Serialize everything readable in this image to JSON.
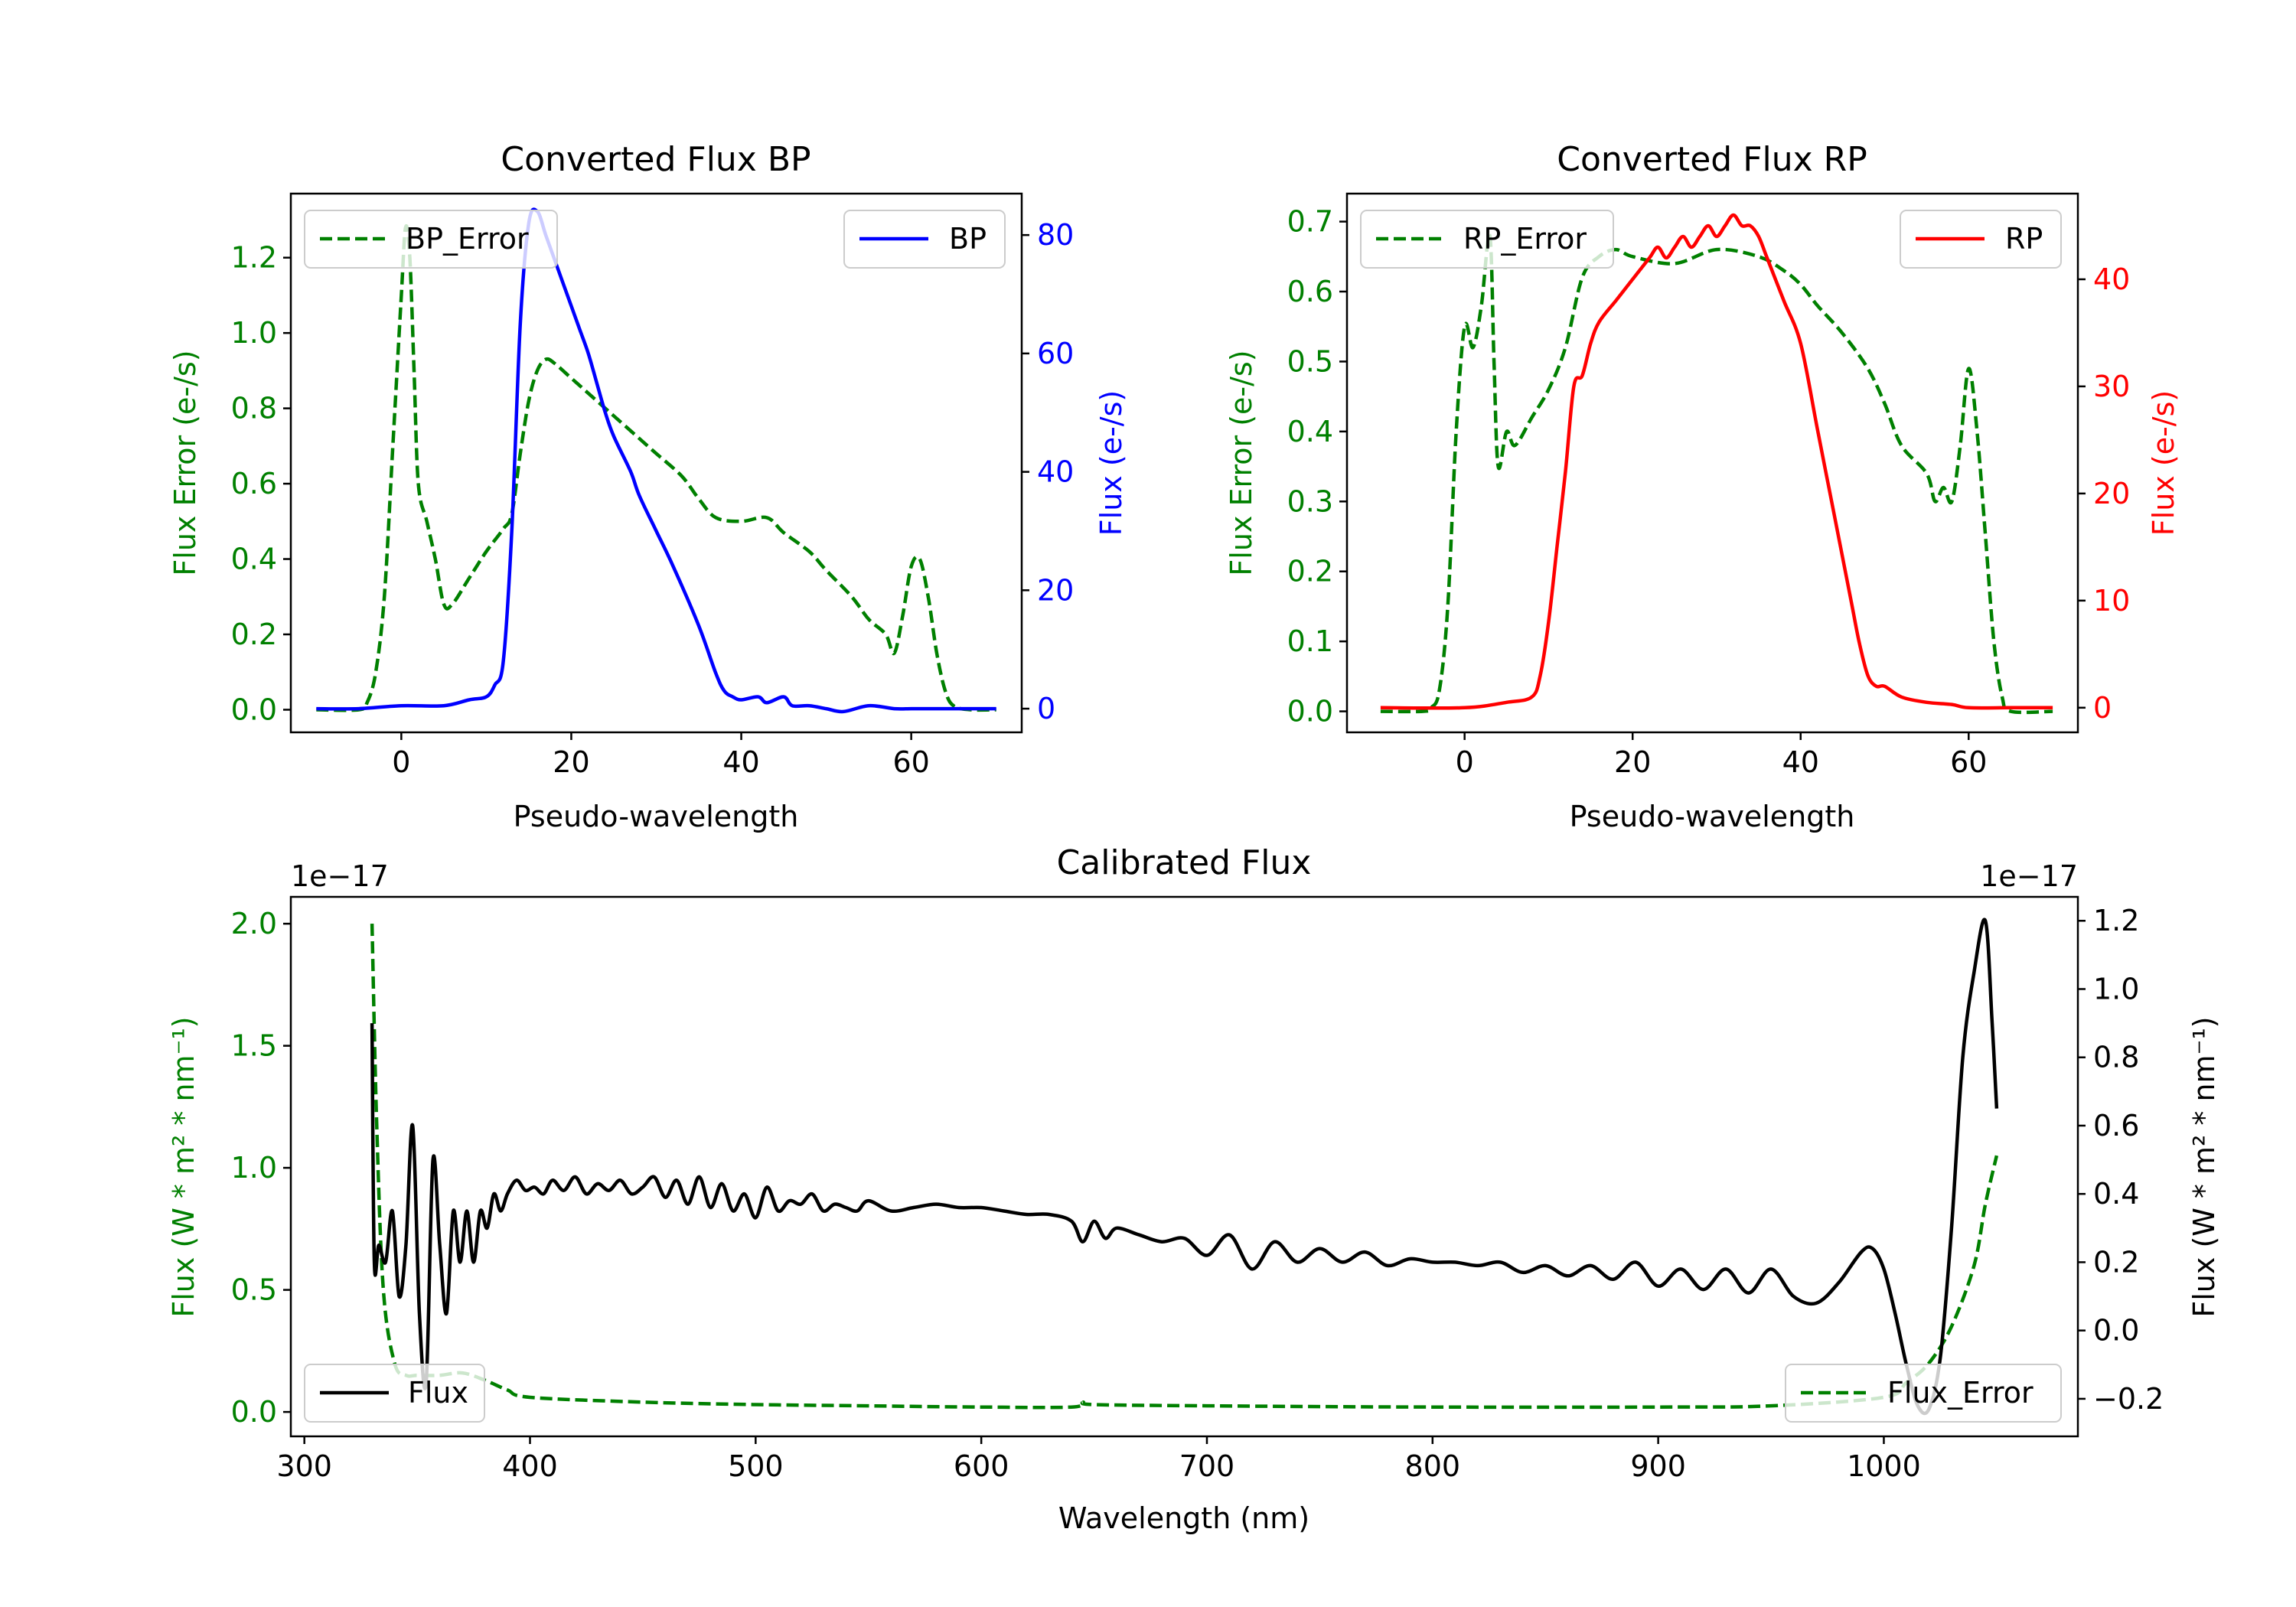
{
  "colors": {
    "bp": "#0000ff",
    "rp": "#ff0000",
    "err": "#008000",
    "flux": "#000000",
    "axis": "#000000"
  },
  "chart_data": [
    {
      "id": "bp",
      "type": "line",
      "title": "Converted Flux BP",
      "xlabel": "Pseudo-wavelength",
      "ylabel_left": "Flux Error (e-/s)",
      "ylabel_right": "Flux (e-/s)",
      "xlim": [
        -13,
        73
      ],
      "ylim_left": [
        -0.06,
        1.37
      ],
      "ylim_right": [
        -4,
        87
      ],
      "xticks": [
        0,
        20,
        40,
        60
      ],
      "xtick_labels": [
        "0",
        "20",
        "40",
        "60"
      ],
      "yticks_left": [
        0.0,
        0.2,
        0.4,
        0.6,
        0.8,
        1.0,
        1.2
      ],
      "ytick_labels_left": [
        "0.0",
        "0.2",
        "0.4",
        "0.6",
        "0.8",
        "1.0",
        "1.2"
      ],
      "yticks_right": [
        0,
        20,
        40,
        60,
        80
      ],
      "ytick_labels_right": [
        "0",
        "20",
        "40",
        "60",
        "80"
      ],
      "legend_left": "BP_Error",
      "legend_right": "BP",
      "series": [
        {
          "name": "BP_Error",
          "axis": "left",
          "style": "dashed",
          "color": "err",
          "x": [
            -10,
            -5,
            -4,
            -3,
            -2,
            -1,
            0,
            0.5,
            1,
            1.5,
            2,
            3,
            4,
            5,
            6,
            8,
            10,
            12,
            13,
            14,
            15,
            16,
            17,
            18,
            20,
            22,
            25,
            28,
            30,
            33,
            35,
            37,
            40,
            43,
            45,
            48,
            50,
            53,
            55,
            57,
            58,
            59,
            60,
            61,
            62,
            63,
            64,
            65,
            67,
            70
          ],
          "y": [
            0.0,
            0.0,
            0.02,
            0.1,
            0.3,
            0.7,
            1.1,
            1.28,
            1.2,
            0.9,
            0.6,
            0.5,
            0.4,
            0.28,
            0.28,
            0.35,
            0.42,
            0.48,
            0.52,
            0.68,
            0.82,
            0.9,
            0.93,
            0.92,
            0.88,
            0.84,
            0.78,
            0.72,
            0.68,
            0.62,
            0.56,
            0.51,
            0.5,
            0.51,
            0.47,
            0.42,
            0.37,
            0.3,
            0.24,
            0.2,
            0.15,
            0.25,
            0.38,
            0.4,
            0.3,
            0.15,
            0.05,
            0.01,
            0.0,
            0.0
          ]
        },
        {
          "name": "BP",
          "axis": "right",
          "style": "solid",
          "color": "bp",
          "x": [
            -10,
            -5,
            0,
            5,
            8,
            10,
            11,
            12,
            13,
            14,
            15,
            16,
            17,
            18,
            19,
            20,
            21,
            22,
            23,
            24,
            25,
            27,
            28,
            30,
            32,
            35,
            37,
            38,
            39,
            40,
            42,
            43,
            45,
            46,
            48,
            50,
            52,
            55,
            58,
            60,
            62,
            65,
            70
          ],
          "y": [
            0,
            0,
            0.5,
            0.5,
            1.5,
            2,
            4,
            8,
            30,
            65,
            82,
            84,
            80,
            76,
            72,
            68,
            64,
            60,
            55,
            50,
            46,
            40,
            36,
            30,
            24,
            14,
            6,
            3,
            2,
            1.5,
            2,
            1,
            2,
            0.5,
            0.5,
            0,
            -0.5,
            0.5,
            0,
            0,
            0,
            0,
            0
          ]
        }
      ]
    },
    {
      "id": "rp",
      "type": "line",
      "title": "Converted Flux RP",
      "xlabel": "Pseudo-wavelength",
      "ylabel_left": "Flux Error (e-/s)",
      "ylabel_right": "Flux (e-/s)",
      "xlim": [
        -14,
        73
      ],
      "ylim_left": [
        -0.03,
        0.74
      ],
      "ylim_right": [
        -2.3,
        48
      ],
      "xticks": [
        0,
        20,
        40,
        60
      ],
      "xtick_labels": [
        "0",
        "20",
        "40",
        "60"
      ],
      "yticks_left": [
        0.0,
        0.1,
        0.2,
        0.3,
        0.4,
        0.5,
        0.6,
        0.7
      ],
      "ytick_labels_left": [
        "0.0",
        "0.1",
        "0.2",
        "0.3",
        "0.4",
        "0.5",
        "0.6",
        "0.7"
      ],
      "yticks_right": [
        0,
        10,
        20,
        30,
        40
      ],
      "ytick_labels_right": [
        "0",
        "10",
        "20",
        "30",
        "40"
      ],
      "legend_left": "RP_Error",
      "legend_right": "RP",
      "series": [
        {
          "name": "RP_Error",
          "axis": "left",
          "style": "dashed",
          "color": "err",
          "x": [
            -10,
            -5,
            -4,
            -3,
            -2,
            -1,
            0,
            1,
            2,
            3,
            3.5,
            4,
            5,
            6,
            8,
            10,
            12,
            14,
            16,
            18,
            20,
            25,
            30,
            35,
            38,
            40,
            42,
            45,
            48,
            50,
            52,
            55,
            56,
            57,
            58,
            59,
            60,
            61,
            62,
            63,
            64,
            65,
            70
          ],
          "y": [
            0.0,
            0.0,
            0.005,
            0.03,
            0.15,
            0.4,
            0.55,
            0.52,
            0.58,
            0.68,
            0.5,
            0.35,
            0.4,
            0.38,
            0.42,
            0.46,
            0.52,
            0.62,
            0.65,
            0.66,
            0.65,
            0.64,
            0.66,
            0.65,
            0.63,
            0.61,
            0.58,
            0.54,
            0.49,
            0.44,
            0.38,
            0.34,
            0.3,
            0.32,
            0.3,
            0.38,
            0.49,
            0.4,
            0.25,
            0.1,
            0.02,
            0.0,
            0.0
          ]
        },
        {
          "name": "RP",
          "axis": "right",
          "style": "solid",
          "color": "rp",
          "x": [
            -10,
            0,
            5,
            8,
            9,
            10,
            11,
            12,
            13,
            14,
            15,
            16,
            18,
            20,
            22,
            23,
            24,
            25,
            26,
            27,
            28,
            29,
            30,
            31,
            32,
            33,
            34,
            35,
            36,
            38,
            40,
            42,
            44,
            46,
            47,
            48,
            49,
            50,
            52,
            55,
            58,
            60,
            65,
            70
          ],
          "y": [
            0,
            0,
            0.5,
            1,
            3,
            8,
            15,
            22,
            30,
            31,
            34,
            36,
            38,
            40,
            42,
            43,
            42,
            43,
            44,
            43,
            44,
            45,
            44,
            45,
            46,
            45,
            45,
            44,
            42,
            38,
            34,
            26,
            18,
            10,
            6,
            3,
            2,
            2,
            1,
            0.5,
            0.3,
            0,
            0,
            0
          ]
        }
      ]
    },
    {
      "id": "cal",
      "type": "line",
      "title": "Calibrated Flux",
      "xlabel": "Wavelength (nm)",
      "ylabel_left": "Flux (W * m² * nm⁻¹)",
      "ylabel_right": "Flux (W * m² * nm⁻¹)",
      "offset_left": "1e−17",
      "offset_right": "1e−17",
      "xlim": [
        294,
        1086
      ],
      "ylim_left": [
        -0.1,
        2.11
      ],
      "ylim_right": [
        -0.31,
        1.27
      ],
      "xticks": [
        300,
        400,
        500,
        600,
        700,
        800,
        900,
        1000
      ],
      "xtick_labels": [
        "300",
        "400",
        "500",
        "600",
        "700",
        "800",
        "900",
        "1000"
      ],
      "yticks_left": [
        0.0,
        0.5,
        1.0,
        1.5,
        2.0
      ],
      "ytick_labels_left": [
        "0.0",
        "0.5",
        "1.0",
        "1.5",
        "2.0"
      ],
      "yticks_right": [
        -0.2,
        0.0,
        0.2,
        0.4,
        0.6,
        0.8,
        1.0,
        1.2
      ],
      "ytick_labels_right": [
        "−0.2",
        "0.0",
        "0.2",
        "0.4",
        "0.6",
        "0.8",
        "1.0",
        "1.2"
      ],
      "legend_left": "Flux",
      "legend_right": "Flux_Error",
      "series": [
        {
          "name": "Flux_Error",
          "axis": "left",
          "style": "dashed",
          "color": "err",
          "x": [
            330,
            332,
            335,
            340,
            345,
            350,
            360,
            370,
            380,
            390,
            400,
            450,
            500,
            550,
            600,
            640,
            645,
            650,
            700,
            800,
            900,
            950,
            1000,
            1010,
            1020,
            1030,
            1040,
            1045,
            1050
          ],
          "y": [
            2.0,
            1.2,
            0.5,
            0.2,
            0.15,
            0.15,
            0.15,
            0.16,
            0.13,
            0.09,
            0.06,
            0.04,
            0.03,
            0.025,
            0.02,
            0.02,
            0.04,
            0.03,
            0.025,
            0.02,
            0.02,
            0.025,
            0.06,
            0.12,
            0.2,
            0.35,
            0.6,
            0.85,
            1.05
          ]
        },
        {
          "name": "Flux",
          "axis": "right",
          "style": "solid",
          "color": "flux",
          "x": [
            330,
            331,
            333,
            336,
            339,
            342,
            345,
            348,
            351,
            354,
            357,
            360,
            363,
            366,
            369,
            372,
            375,
            378,
            381,
            384,
            387,
            390,
            394,
            398,
            402,
            406,
            410,
            415,
            420,
            425,
            430,
            435,
            440,
            445,
            450,
            455,
            460,
            465,
            470,
            475,
            480,
            485,
            490,
            495,
            500,
            505,
            510,
            515,
            520,
            525,
            530,
            535,
            540,
            545,
            550,
            560,
            570,
            580,
            590,
            600,
            610,
            620,
            630,
            640,
            645,
            650,
            655,
            660,
            670,
            680,
            690,
            700,
            710,
            720,
            730,
            740,
            750,
            760,
            770,
            780,
            790,
            800,
            810,
            820,
            830,
            840,
            850,
            860,
            870,
            880,
            890,
            900,
            910,
            920,
            930,
            940,
            950,
            960,
            970,
            980,
            990,
            995,
            1000,
            1005,
            1010,
            1015,
            1020,
            1025,
            1030,
            1035,
            1040,
            1045,
            1048,
            1050
          ],
          "y": [
            0.9,
            0.2,
            0.25,
            0.2,
            0.35,
            0.1,
            0.25,
            0.6,
            0.05,
            -0.15,
            0.5,
            0.25,
            0.05,
            0.35,
            0.2,
            0.35,
            0.2,
            0.35,
            0.3,
            0.4,
            0.35,
            0.4,
            0.44,
            0.41,
            0.42,
            0.4,
            0.44,
            0.41,
            0.45,
            0.4,
            0.43,
            0.41,
            0.44,
            0.4,
            0.42,
            0.45,
            0.39,
            0.44,
            0.37,
            0.45,
            0.36,
            0.43,
            0.35,
            0.4,
            0.33,
            0.42,
            0.35,
            0.38,
            0.37,
            0.4,
            0.35,
            0.37,
            0.36,
            0.35,
            0.38,
            0.35,
            0.36,
            0.37,
            0.36,
            0.36,
            0.35,
            0.34,
            0.34,
            0.32,
            0.26,
            0.32,
            0.27,
            0.3,
            0.28,
            0.26,
            0.27,
            0.22,
            0.28,
            0.18,
            0.26,
            0.2,
            0.24,
            0.2,
            0.23,
            0.19,
            0.21,
            0.2,
            0.2,
            0.19,
            0.2,
            0.17,
            0.19,
            0.16,
            0.19,
            0.15,
            0.2,
            0.13,
            0.18,
            0.12,
            0.18,
            0.11,
            0.18,
            0.1,
            0.08,
            0.14,
            0.23,
            0.24,
            0.18,
            0.05,
            -0.1,
            -0.22,
            -0.23,
            -0.08,
            0.3,
            0.8,
            1.05,
            1.2,
            0.9,
            0.65
          ]
        }
      ]
    }
  ]
}
